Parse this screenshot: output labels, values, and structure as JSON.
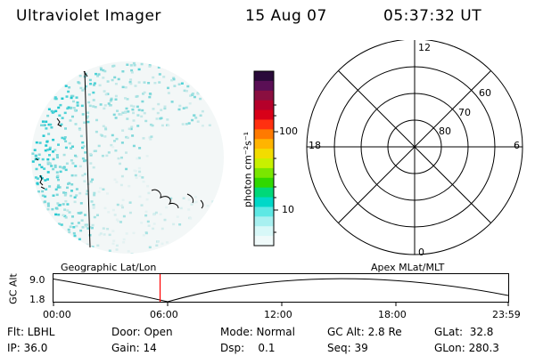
{
  "header": {
    "title": "Ultraviolet Imager",
    "date": "15 Aug 07",
    "time": "05:37:32 UT"
  },
  "colorbar": {
    "unit_label": "photon cm⁻²s⁻¹",
    "tick_labels": [
      "100",
      "10"
    ],
    "colors": [
      "#2a0a3a",
      "#5a0f55",
      "#8a0f40",
      "#b5002a",
      "#d80018",
      "#ff3010",
      "#ff7a00",
      "#ffb400",
      "#f2dc00",
      "#c8f000",
      "#7ae600",
      "#30d800",
      "#00d878",
      "#00d8c8",
      "#5ee8e4",
      "#a8f0f0",
      "#d8f8f8",
      "#f0fafa"
    ]
  },
  "polar_grid": {
    "mlt_labels": {
      "top": "12",
      "right": "6",
      "bottom": "0",
      "left": "18"
    },
    "lat_labels": [
      "60",
      "70",
      "80"
    ]
  },
  "timeline": {
    "ylabel": "GC Alt",
    "y_ticks": [
      "9.0",
      "1.8"
    ],
    "left_caption": "Geographic Lat/Lon",
    "right_caption": "Apex  MLat/MLT",
    "x_ticks": [
      "00:00",
      "06:00",
      "12:00",
      "18:00",
      "23:59"
    ],
    "current_time_fraction": 0.2344,
    "marker_color": "#ff0000"
  },
  "footer": {
    "row1": [
      "Flt: LBHL",
      "Door: Open",
      "Mode: Normal",
      "GC Alt: 2.8 Re",
      "GLat:  32.8"
    ],
    "row2": [
      "IP: 36.0",
      "Gain: 14",
      "Dsp:    0.1",
      "Seq: 39",
      "GLon: 280.3"
    ]
  }
}
